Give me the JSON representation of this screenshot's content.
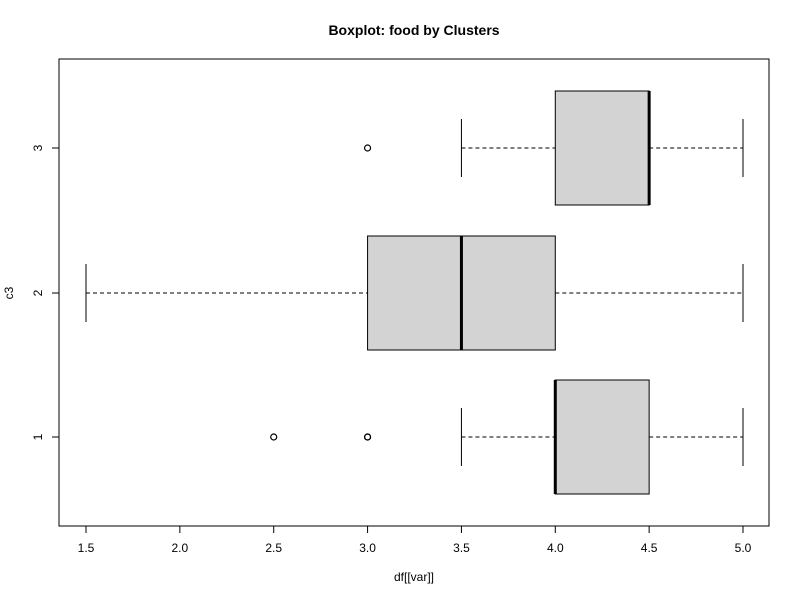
{
  "chart_data": {
    "type": "boxplot",
    "orientation": "horizontal",
    "title": "Boxplot:  food  by Clusters",
    "xlabel": "df[[var]]",
    "ylabel": "c3",
    "xlim": [
      1.5,
      5.0
    ],
    "x_ticks": [
      "1.5",
      "2.0",
      "2.5",
      "3.0",
      "3.5",
      "4.0",
      "4.5",
      "5.0"
    ],
    "categories": [
      "1",
      "2",
      "3"
    ],
    "grid": false,
    "legend": "none",
    "box_fill": "#d3d3d3",
    "series": [
      {
        "category": "1",
        "whisker_low": 3.5,
        "q1": 4.0,
        "median": 4.0,
        "q3": 4.5,
        "whisker_high": 5.0,
        "outliers": [
          2.5,
          3.0,
          3.0
        ]
      },
      {
        "category": "2",
        "whisker_low": 1.5,
        "q1": 3.0,
        "median": 3.5,
        "q3": 4.0,
        "whisker_high": 5.0,
        "outliers": []
      },
      {
        "category": "3",
        "whisker_low": 3.5,
        "q1": 4.0,
        "median": 4.5,
        "q3": 4.5,
        "whisker_high": 5.0,
        "outliers": [
          3.0
        ]
      }
    ]
  }
}
